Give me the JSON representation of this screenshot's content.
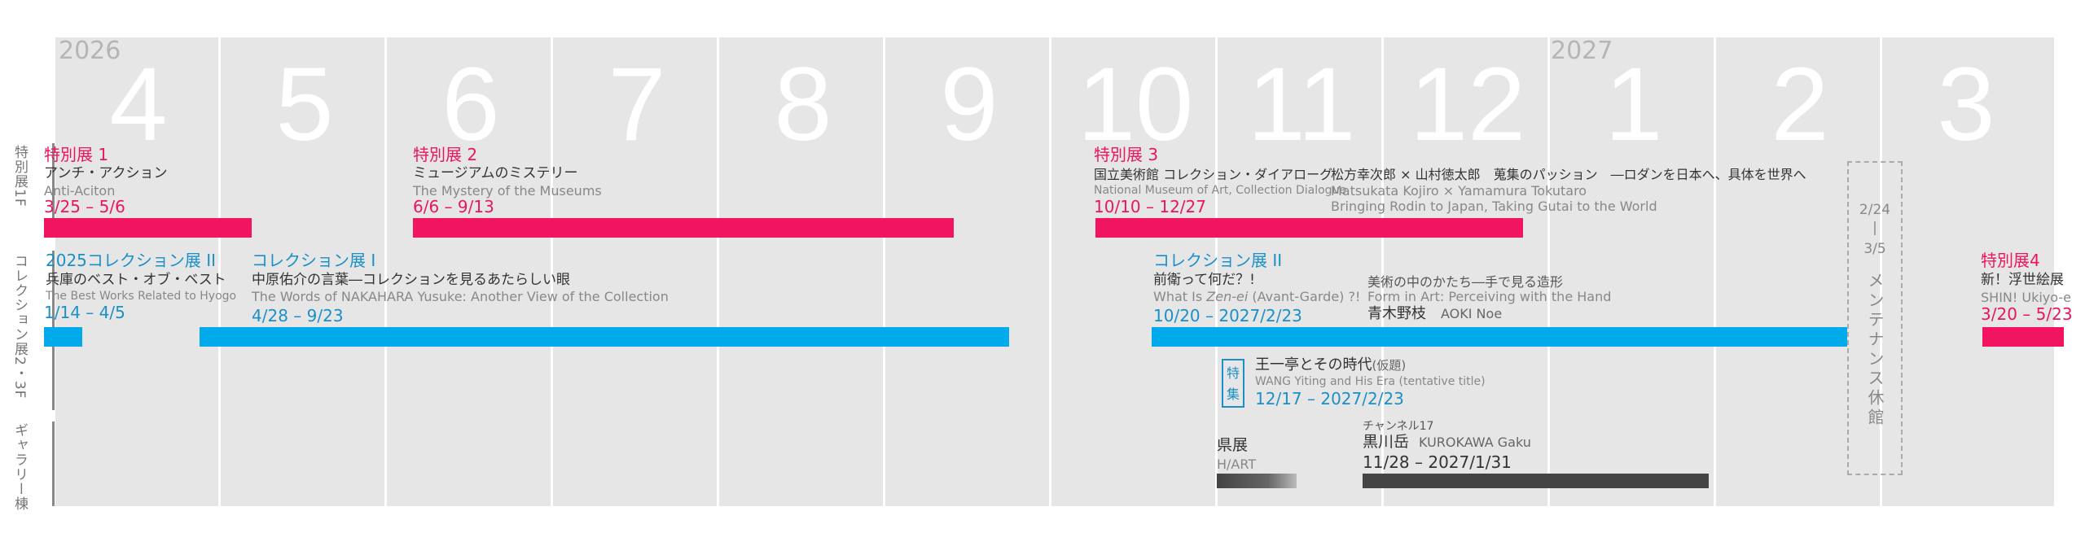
{
  "timeline": {
    "years": [
      "2026",
      "2027"
    ],
    "months": [
      "4",
      "5",
      "6",
      "7",
      "8",
      "9",
      "10",
      "11",
      "12",
      "1",
      "2",
      "3"
    ]
  },
  "floors": {
    "special": "特別展1F",
    "collection": "コレクション展2・3F",
    "gallery": "ギャラリー棟"
  },
  "events": {
    "sp1": {
      "category": "特別展 1",
      "title": "アンチ・アクション",
      "subtitle": "Anti-Aciton",
      "dates": "3/25 – 5/6"
    },
    "sp2": {
      "category": "特別展 2",
      "title": "ミュージアムのミステリー",
      "subtitle": "The Mystery of the Museums",
      "dates": "6/6 – 9/13"
    },
    "sp3": {
      "category": "特別展 3",
      "title_a": "国立美術館 コレクション・ダイアローグ",
      "subtitle_a": "National Museum of Art, Collection Dialogue",
      "title_b": "松方幸次郎 × 山村徳太郎　蒐集のパッション　―ロダンを日本へ、具体を世界へ",
      "subtitle_b1": "Matsukata Kojiro × Yamamura Tokutaro",
      "subtitle_b2": "Bringing Rodin to Japan, Taking Gutai to the World",
      "dates": "10/10 – 12/27"
    },
    "col2025": {
      "category": "2025コレクション展 II",
      "title": "兵庫のベスト・オブ・ベスト",
      "subtitle": "The Best Works Related to Hyogo",
      "dates": "1/14 – 4/5"
    },
    "col1": {
      "category": "コレクション展 I",
      "title": "中原佑介の言葉―コレクションを見るあたらしい眼",
      "subtitle": "The Words of NAKAHARA Yusuke: Another View of the Collection",
      "dates": "4/28 – 9/23"
    },
    "col2": {
      "category": "コレクション展 II",
      "title": "前衛って何だ？!",
      "subtitle_pre": "What Is ",
      "subtitle_em": "Zen-ei",
      "subtitle_post": " (Avant-Garde) ?!",
      "dates": "10/20 – 2027/2/23"
    },
    "col2b": {
      "title": "美術の中のかたち―手で見る造形",
      "subtitle": "Form in Art: Perceiving with the Hand",
      "artist": "青木野枝",
      "artist_en": "AOKI Noe"
    },
    "feature": {
      "badge": "特集",
      "title": "王一亭とその時代",
      "title_note": "(仮題)",
      "subtitle": "WANG Yiting and His Era (tentative title)",
      "dates": "12/17 – 2027/2/23"
    },
    "kenten": {
      "title": "県展",
      "subtitle": "H/ART"
    },
    "kurokawa": {
      "channel": "チャンネル17",
      "title": "黒川岳",
      "title_en": "KUROKAWA Gaku",
      "dates": "11/28 – 2027/1/31"
    },
    "maintenance": {
      "dates_start": "2/24",
      "dash": "|",
      "dates_end": "3/5",
      "label": "メンテナンス休館"
    },
    "sp4": {
      "category": "特別展4",
      "title": "新！浮世絵展",
      "subtitle": "SHIN! Ukiyo-e",
      "dates": "3/20 – 5/23"
    }
  },
  "colors": {
    "special": "#f01461",
    "collection": "#00aaeb",
    "gallery": "#444444",
    "grid": "#e6e6e6"
  }
}
